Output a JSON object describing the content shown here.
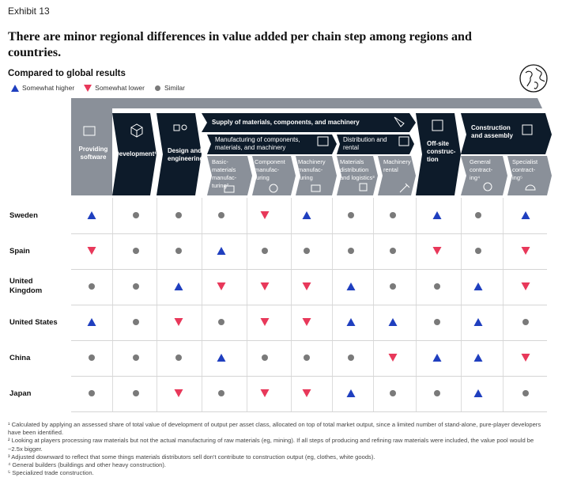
{
  "exhibit": "Exhibit 13",
  "title": "There are minor regional differences in value added per chain step among regions and countries.",
  "subtitle": "Compared to global results",
  "legend": {
    "higher": "Somewhat higher",
    "lower": "Somewhat lower",
    "similar": "Similar"
  },
  "colors": {
    "dark": "#0d1b2a",
    "gray": "#8a9099",
    "higher": "#1f3fbf",
    "lower": "#e8385a",
    "similar": "#7a7a7a"
  },
  "header": {
    "providing_software": "Providing software",
    "development": "Development¹",
    "design_engineering": "Design and engineering",
    "supply": "Supply of materials, components, and machinery",
    "manufacturing_group": "Manufacturing of components, materials, and machinery",
    "distribution_group": "Distribution and rental",
    "offsite": "Off-site construc-tion",
    "construction_group": "Construction and assembly",
    "basic_materials": "Basic-materials manufac-turing²",
    "component": "Component manufac-turing",
    "machinery_manuf": "Machinery manufac-turing",
    "materials_distribution": "Materials distribution and logistics³",
    "machinery_rental": "Machinery rental",
    "general_contracting": "General contract-ing⁴",
    "specialist_contracting": "Specialist contract-ing⁵"
  },
  "rows": [
    {
      "country": "Sweden",
      "values": [
        "higher",
        "similar",
        "similar",
        "similar",
        "lower",
        "higher",
        "similar",
        "similar",
        "higher",
        "similar",
        "higher"
      ]
    },
    {
      "country": "Spain",
      "values": [
        "lower",
        "similar",
        "similar",
        "higher",
        "similar",
        "similar",
        "similar",
        "similar",
        "lower",
        "similar",
        "lower"
      ]
    },
    {
      "country": "United Kingdom",
      "values": [
        "similar",
        "similar",
        "higher",
        "lower",
        "lower",
        "lower",
        "higher",
        "similar",
        "similar",
        "higher",
        "lower"
      ]
    },
    {
      "country": "United States",
      "values": [
        "higher",
        "similar",
        "lower",
        "similar",
        "lower",
        "lower",
        "higher",
        "higher",
        "similar",
        "higher",
        "similar"
      ]
    },
    {
      "country": "China",
      "values": [
        "similar",
        "similar",
        "similar",
        "higher",
        "similar",
        "similar",
        "similar",
        "lower",
        "higher",
        "higher",
        "lower"
      ]
    },
    {
      "country": "Japan",
      "values": [
        "similar",
        "similar",
        "lower",
        "similar",
        "lower",
        "lower",
        "higher",
        "similar",
        "similar",
        "higher",
        "similar"
      ]
    }
  ],
  "footnotes": [
    "¹ Calculated by applying an assessed share of total value of development of output per asset class, allocated on top of total market output, since a limited number of stand-alone, pure-player developers have been identified.",
    "² Looking at players processing raw materials but not the actual manufacturing of raw materials (eg, mining). If all steps of producing and refining raw materials were included, the value pool would be ~2.5x bigger.",
    "³ Adjusted downward to reflect that some things materials distributors sell don't contribute to construction output (eg, clothes, white goods).",
    "⁴ General builders (buildings and other heavy construction).",
    "⁵ Specialized trade construction."
  ]
}
